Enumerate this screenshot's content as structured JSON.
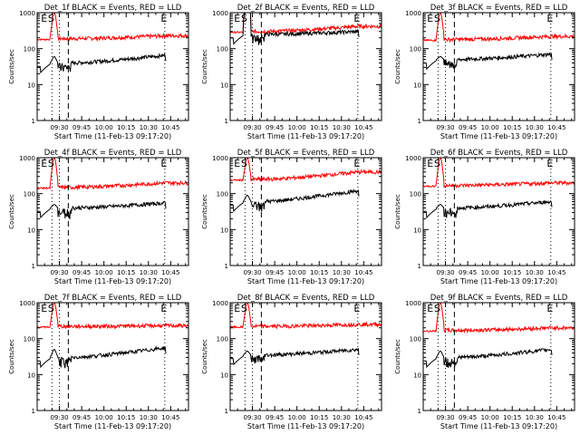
{
  "figure": {
    "background": "#ffffff",
    "axis_color": "#000000"
  },
  "chart_data": [
    {
      "type": "line",
      "title": "Det_1f BLACK = Events, RED = LLD",
      "xlabel": "Start Time (11-Feb-13 09:17:20)",
      "ylabel": "Counts/sec",
      "xlim": [
        "09:15",
        "10:57"
      ],
      "ylim": [
        1,
        1000
      ],
      "yscale": "log",
      "xticks": [
        "09:30",
        "09:45",
        "10:00",
        "10:15",
        "10:30",
        "10:45"
      ],
      "yticks": [
        "1",
        "10",
        "100",
        "1000"
      ],
      "markers": [
        {
          "label": "E",
          "t": "09:17"
        },
        {
          "label": "S",
          "t": "09:25"
        },
        {
          "label": "E",
          "t": "10:41"
        }
      ],
      "vlines": [
        {
          "t": "09:25",
          "style": "dotted"
        },
        {
          "t": "09:30",
          "style": "dotted"
        },
        {
          "t": "09:36",
          "style": "dashed"
        },
        {
          "t": "10:41",
          "style": "dotted"
        }
      ],
      "series": [
        {
          "color": "#ff0000",
          "baseline": 190,
          "spike": 1000,
          "end_level": 230
        },
        {
          "color": "#000000",
          "baseline": 40,
          "spike": 60,
          "end_level": 65
        }
      ]
    },
    {
      "type": "line",
      "title": "Det_2f BLACK = Events, RED = LLD",
      "xlabel": "Start Time (11-Feb-13 09:17:20)",
      "ylabel": "Counts/sec",
      "xlim": [
        "09:15",
        "10:57"
      ],
      "ylim": [
        1,
        1000
      ],
      "yscale": "log",
      "xticks": [
        "09:30",
        "09:45",
        "10:00",
        "10:15",
        "10:30",
        "10:45"
      ],
      "yticks": [
        "1",
        "10",
        "100",
        "1000"
      ],
      "markers": [
        {
          "label": "E",
          "t": "09:17"
        },
        {
          "label": "S",
          "t": "09:25"
        },
        {
          "label": "E",
          "t": "10:41"
        }
      ],
      "vlines": [
        {
          "t": "09:25",
          "style": "dotted"
        },
        {
          "t": "09:30",
          "style": "dotted"
        },
        {
          "t": "09:36",
          "style": "dashed"
        },
        {
          "t": "10:41",
          "style": "dotted"
        }
      ],
      "series": [
        {
          "color": "#ff0000",
          "baseline": 300,
          "spike": 4500,
          "end_level": 420
        },
        {
          "color": "#000000",
          "baseline": 250,
          "spike": 4500,
          "end_level": 300
        }
      ]
    },
    {
      "type": "line",
      "title": "Det_3f BLACK = Events, RED = LLD",
      "xlabel": "Start Time (11-Feb-13 09:17:20)",
      "ylabel": "Counts/sec",
      "xlim": [
        "09:15",
        "10:57"
      ],
      "ylim": [
        1,
        1000
      ],
      "yscale": "log",
      "xticks": [
        "09:30",
        "09:45",
        "10:00",
        "10:15",
        "10:30",
        "10:45"
      ],
      "yticks": [
        "1",
        "10",
        "100",
        "1000"
      ],
      "markers": [
        {
          "label": "E",
          "t": "09:17"
        },
        {
          "label": "S",
          "t": "09:25"
        },
        {
          "label": "E",
          "t": "10:41"
        }
      ],
      "vlines": [
        {
          "t": "09:25",
          "style": "dotted"
        },
        {
          "t": "09:30",
          "style": "dotted"
        },
        {
          "t": "09:36",
          "style": "dashed"
        },
        {
          "t": "10:41",
          "style": "dotted"
        }
      ],
      "series": [
        {
          "color": "#ff0000",
          "baseline": 180,
          "spike": 1000,
          "end_level": 220
        },
        {
          "color": "#000000",
          "baseline": 50,
          "spike": 60,
          "end_level": 70
        }
      ]
    },
    {
      "type": "line",
      "title": "Det_4f BLACK = Events, RED = LLD",
      "xlabel": "Start Time (11-Feb-13 09:17:20)",
      "ylabel": "Counts/sec",
      "xlim": [
        "09:15",
        "10:57"
      ],
      "ylim": [
        1,
        1000
      ],
      "yscale": "log",
      "xticks": [
        "09:30",
        "09:45",
        "10:00",
        "10:15",
        "10:30",
        "10:45"
      ],
      "yticks": [
        "1",
        "10",
        "100",
        "1000"
      ],
      "markers": [
        {
          "label": "E",
          "t": "09:17"
        },
        {
          "label": "S",
          "t": "09:25"
        },
        {
          "label": "E",
          "t": "10:41"
        }
      ],
      "vlines": [
        {
          "t": "09:25",
          "style": "dotted"
        },
        {
          "t": "09:30",
          "style": "dotted"
        },
        {
          "t": "09:36",
          "style": "dashed"
        },
        {
          "t": "10:41",
          "style": "dotted"
        }
      ],
      "series": [
        {
          "color": "#ff0000",
          "baseline": 150,
          "spike": 1000,
          "end_level": 200
        },
        {
          "color": "#000000",
          "baseline": 40,
          "spike": 50,
          "end_level": 55
        }
      ]
    },
    {
      "type": "line",
      "title": "Det_5f BLACK = Events, RED = LLD",
      "xlabel": "Start Time (11-Feb-13 09:17:20)",
      "ylabel": "Counts/sec",
      "xlim": [
        "09:15",
        "10:57"
      ],
      "ylim": [
        1,
        1000
      ],
      "yscale": "log",
      "xticks": [
        "09:30",
        "09:45",
        "10:00",
        "10:15",
        "10:30",
        "10:45"
      ],
      "yticks": [
        "1",
        "10",
        "100",
        "1000"
      ],
      "markers": [
        {
          "label": "E",
          "t": "09:17"
        },
        {
          "label": "S",
          "t": "09:25"
        },
        {
          "label": "E",
          "t": "10:41"
        }
      ],
      "vlines": [
        {
          "t": "09:25",
          "style": "dotted"
        },
        {
          "t": "09:30",
          "style": "dotted"
        },
        {
          "t": "09:36",
          "style": "dashed"
        },
        {
          "t": "10:41",
          "style": "dotted"
        }
      ],
      "series": [
        {
          "color": "#ff0000",
          "baseline": 250,
          "spike": 1000,
          "end_level": 400
        },
        {
          "color": "#000000",
          "baseline": 60,
          "spike": 90,
          "end_level": 120
        }
      ]
    },
    {
      "type": "line",
      "title": "Det_6f BLACK = Events, RED = LLD",
      "xlabel": "Start Time (11-Feb-13 09:17:20)",
      "ylabel": "Counts/sec",
      "xlim": [
        "09:15",
        "10:57"
      ],
      "ylim": [
        1,
        1000
      ],
      "yscale": "log",
      "xticks": [
        "09:30",
        "09:45",
        "10:00",
        "10:15",
        "10:30",
        "10:45"
      ],
      "yticks": [
        "1",
        "10",
        "100",
        "1000"
      ],
      "markers": [
        {
          "label": "E",
          "t": "09:17"
        },
        {
          "label": "S",
          "t": "09:25"
        },
        {
          "label": "E",
          "t": "10:41"
        }
      ],
      "vlines": [
        {
          "t": "09:25",
          "style": "dotted"
        },
        {
          "t": "09:30",
          "style": "dotted"
        },
        {
          "t": "09:36",
          "style": "dashed"
        },
        {
          "t": "10:41",
          "style": "dotted"
        }
      ],
      "series": [
        {
          "color": "#ff0000",
          "baseline": 170,
          "spike": 1000,
          "end_level": 200
        },
        {
          "color": "#000000",
          "baseline": 40,
          "spike": 50,
          "end_level": 60
        }
      ]
    },
    {
      "type": "line",
      "title": "Det_7f BLACK = Events, RED = LLD",
      "xlabel": "Start Time (11-Feb-13 09:17:20)",
      "ylabel": "Counts/sec",
      "xlim": [
        "09:15",
        "10:57"
      ],
      "ylim": [
        1,
        1000
      ],
      "yscale": "log",
      "xticks": [
        "09:30",
        "09:45",
        "10:00",
        "10:15",
        "10:30",
        "10:45"
      ],
      "yticks": [
        "1",
        "10",
        "100",
        "1000"
      ],
      "markers": [
        {
          "label": "E",
          "t": "09:17"
        },
        {
          "label": "S",
          "t": "09:25"
        },
        {
          "label": "E",
          "t": "10:41"
        }
      ],
      "vlines": [
        {
          "t": "09:25",
          "style": "dotted"
        },
        {
          "t": "09:30",
          "style": "dotted"
        },
        {
          "t": "09:36",
          "style": "dashed"
        },
        {
          "t": "10:41",
          "style": "dotted"
        }
      ],
      "series": [
        {
          "color": "#ff0000",
          "baseline": 220,
          "spike": 1000,
          "end_level": 230
        },
        {
          "color": "#000000",
          "baseline": 30,
          "spike": 50,
          "end_level": 55
        }
      ]
    },
    {
      "type": "line",
      "title": "Det_8f BLACK = Events, RED = LLD",
      "xlabel": "Start Time (11-Feb-13 09:17:20)",
      "ylabel": "Counts/sec",
      "xlim": [
        "09:15",
        "10:57"
      ],
      "ylim": [
        1,
        1000
      ],
      "yscale": "log",
      "xticks": [
        "09:30",
        "09:45",
        "10:00",
        "10:15",
        "10:30",
        "10:45"
      ],
      "yticks": [
        "1",
        "10",
        "100",
        "1000"
      ],
      "markers": [
        {
          "label": "E",
          "t": "09:17"
        },
        {
          "label": "S",
          "t": "09:25"
        },
        {
          "label": "E",
          "t": "10:41"
        }
      ],
      "vlines": [
        {
          "t": "09:25",
          "style": "dotted"
        },
        {
          "t": "09:30",
          "style": "dotted"
        },
        {
          "t": "09:36",
          "style": "dashed"
        },
        {
          "t": "10:41",
          "style": "dotted"
        }
      ],
      "series": [
        {
          "color": "#ff0000",
          "baseline": 220,
          "spike": 1000,
          "end_level": 250
        },
        {
          "color": "#000000",
          "baseline": 35,
          "spike": 45,
          "end_level": 50
        }
      ]
    },
    {
      "type": "line",
      "title": "Det_9f BLACK = Events, RED = LLD",
      "xlabel": "Start Time (11-Feb-13 09:17:20)",
      "ylabel": "Counts/sec",
      "xlim": [
        "09:15",
        "10:57"
      ],
      "ylim": [
        1,
        1000
      ],
      "yscale": "log",
      "xticks": [
        "09:30",
        "09:45",
        "10:00",
        "10:15",
        "10:30",
        "10:45"
      ],
      "yticks": [
        "1",
        "10",
        "100",
        "1000"
      ],
      "markers": [
        {
          "label": "E",
          "t": "09:17"
        },
        {
          "label": "S",
          "t": "09:25"
        },
        {
          "label": "E",
          "t": "10:41"
        }
      ],
      "vlines": [
        {
          "t": "09:25",
          "style": "dotted"
        },
        {
          "t": "09:30",
          "style": "dotted"
        },
        {
          "t": "09:36",
          "style": "dashed"
        },
        {
          "t": "10:41",
          "style": "dotted"
        }
      ],
      "series": [
        {
          "color": "#ff0000",
          "baseline": 170,
          "spike": 1000,
          "end_level": 200
        },
        {
          "color": "#000000",
          "baseline": 30,
          "spike": 45,
          "end_level": 50
        }
      ]
    }
  ]
}
